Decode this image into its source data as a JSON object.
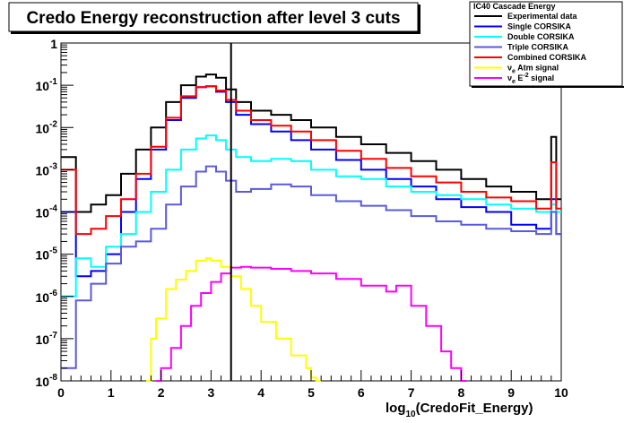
{
  "chart_data": {
    "type": "line",
    "title": "Credo Energy reconstruction after level 3 cuts",
    "legend_title": "IC40 Cascade Energy",
    "legend_placement": "top-right",
    "xlabel": "log",
    "xlabel_sub": "10",
    "xlabel_rest": "(CredoFit_Energy)",
    "xlim": [
      0,
      10
    ],
    "ylim": [
      1e-08,
      1
    ],
    "yscale": "log",
    "x_ticks": [
      "0",
      "1",
      "2",
      "3",
      "4",
      "5",
      "6",
      "7",
      "8",
      "9",
      "10"
    ],
    "y_ticks": [
      {
        "base": "1",
        "exp": ""
      },
      {
        "base": "10",
        "exp": "-1"
      },
      {
        "base": "10",
        "exp": "-2"
      },
      {
        "base": "10",
        "exp": "-3"
      },
      {
        "base": "10",
        "exp": "-4"
      },
      {
        "base": "10",
        "exp": "-5"
      },
      {
        "base": "10",
        "exp": "-6"
      },
      {
        "base": "10",
        "exp": "-7"
      },
      {
        "base": "10",
        "exp": "-8"
      }
    ],
    "cut_line_x": 3.4,
    "series": [
      {
        "name": "Experimental data",
        "color": "#000000",
        "x": [
          0.0,
          0.3,
          0.6,
          0.9,
          1.2,
          1.5,
          1.8,
          2.1,
          2.4,
          2.7,
          2.9,
          3.1,
          3.3,
          3.5,
          3.8,
          4.2,
          4.6,
          5.0,
          5.5,
          6.0,
          6.5,
          7.0,
          7.5,
          8.0,
          8.5,
          9.0,
          9.5,
          9.8,
          9.9
        ],
        "y": [
          0.002,
          0.0001,
          0.00015,
          0.00025,
          0.0008,
          0.003,
          0.01,
          0.04,
          0.1,
          0.16,
          0.18,
          0.15,
          0.08,
          0.04,
          0.025,
          0.02,
          0.015,
          0.01,
          0.006,
          0.004,
          0.0025,
          0.0016,
          0.001,
          0.0006,
          0.0004,
          0.0003,
          0.0002,
          0.006,
          0.0002
        ]
      },
      {
        "name": "Single CORSIKA",
        "color": "#0000ff",
        "x": [
          0.0,
          0.3,
          0.6,
          0.9,
          1.2,
          1.5,
          1.8,
          2.1,
          2.4,
          2.7,
          2.9,
          3.1,
          3.3,
          3.5,
          3.8,
          4.2,
          4.6,
          5.0,
          5.5,
          6.0,
          6.5,
          7.0,
          7.5,
          8.0,
          8.5,
          9.0,
          9.5,
          9.8,
          9.9
        ],
        "y": [
          0.0001,
          3e-06,
          4e-06,
          1e-05,
          0.0001,
          0.0006,
          0.003,
          0.015,
          0.05,
          0.09,
          0.095,
          0.07,
          0.04,
          0.02,
          0.012,
          0.008,
          0.005,
          0.003,
          0.0017,
          0.001,
          0.0006,
          0.0004,
          0.0002,
          0.00013,
          0.0001,
          5e-05,
          4e-05,
          0.0002,
          3e-05
        ]
      },
      {
        "name": "Double CORSIKA",
        "color": "#00ffff",
        "x": [
          0.0,
          0.3,
          0.6,
          0.9,
          1.2,
          1.5,
          1.8,
          2.1,
          2.4,
          2.7,
          2.9,
          3.1,
          3.3,
          3.5,
          3.8,
          4.2,
          4.6,
          5.0,
          5.5,
          6.0,
          6.5,
          7.0,
          7.5,
          8.0,
          8.5,
          9.0,
          9.5,
          9.8,
          9.9
        ],
        "y": [
          1e-06,
          8e-06,
          5e-06,
          1.5e-05,
          3e-05,
          0.0001,
          0.0003,
          0.001,
          0.003,
          0.0055,
          0.0065,
          0.005,
          0.003,
          0.002,
          0.0016,
          0.0018,
          0.0016,
          0.001,
          0.0007,
          0.0006,
          0.0004,
          0.0003,
          0.00025,
          0.0002,
          0.00015,
          0.00012,
          0.0001,
          0.00015,
          0.0001
        ]
      },
      {
        "name": "Triple CORSIKA",
        "color": "#5a5adc",
        "x": [
          0.0,
          0.3,
          0.6,
          0.9,
          1.2,
          1.5,
          1.8,
          2.1,
          2.4,
          2.7,
          2.9,
          3.1,
          3.3,
          3.5,
          3.8,
          4.2,
          4.6,
          5.0,
          5.5,
          6.0,
          6.5,
          7.0,
          7.5,
          8.0,
          8.5,
          9.0,
          9.5,
          9.8,
          9.9
        ],
        "y": [
          2e-08,
          8e-07,
          2e-06,
          6e-06,
          1.5e-05,
          2e-05,
          4e-05,
          0.00015,
          0.0004,
          0.0009,
          0.0012,
          0.0009,
          0.00055,
          0.0003,
          0.00035,
          0.00045,
          0.0004,
          0.00025,
          0.00018,
          0.00014,
          0.00011,
          8e-05,
          6e-05,
          5e-05,
          4e-05,
          3.5e-05,
          3e-05,
          0.0001,
          3e-05
        ]
      },
      {
        "name": "Combined CORSIKA",
        "color": "#ff0000",
        "x": [
          0.0,
          0.3,
          0.6,
          0.9,
          1.2,
          1.5,
          1.8,
          2.1,
          2.4,
          2.7,
          2.9,
          3.1,
          3.3,
          3.5,
          3.8,
          4.2,
          4.6,
          5.0,
          5.5,
          6.0,
          6.5,
          7.0,
          7.5,
          8.0,
          8.5,
          9.0,
          9.5,
          9.8,
          9.9
        ],
        "y": [
          0.001,
          3e-05,
          4e-05,
          8e-05,
          0.0002,
          0.0008,
          0.0035,
          0.017,
          0.055,
          0.09,
          0.095,
          0.075,
          0.045,
          0.025,
          0.015,
          0.011,
          0.008,
          0.005,
          0.0028,
          0.0018,
          0.0011,
          0.0007,
          0.0005,
          0.0003,
          0.00022,
          0.00018,
          0.00012,
          0.0015,
          0.00012
        ]
      },
      {
        "name": "Atm signal",
        "name_prefix": "ν",
        "name_sub": "e",
        "color": "#ffff00",
        "x": [
          1.7,
          1.8,
          1.9,
          2.1,
          2.3,
          2.5,
          2.7,
          2.9,
          3.0,
          3.2,
          3.4,
          3.6,
          3.8,
          4.0,
          4.3,
          4.6,
          4.9,
          5.0,
          5.1
        ],
        "y": [
          1e-08,
          1e-07,
          3e-07,
          1.5e-06,
          2.5e-06,
          4e-06,
          7e-06,
          8e-06,
          7e-06,
          5e-06,
          3e-06,
          1.5e-06,
          6e-07,
          2.5e-07,
          1e-07,
          4e-08,
          2e-08,
          1.2e-08,
          1e-08
        ]
      },
      {
        "name": "signal",
        "name_prefix": "ν",
        "name_sub": "e",
        "name_mid": " E",
        "name_sup": "-2",
        "color": "#ff00ff",
        "x": [
          1.9,
          2.0,
          2.2,
          2.4,
          2.6,
          2.8,
          3.0,
          3.2,
          3.4,
          3.6,
          3.8,
          4.2,
          4.6,
          5.0,
          5.5,
          6.0,
          6.5,
          6.7,
          7.0,
          7.3,
          7.6,
          7.8,
          8.0
        ],
        "y": [
          1e-08,
          2e-08,
          6e-08,
          2e-07,
          6e-07,
          1.2e-06,
          2.2e-06,
          3.5e-06,
          4.8e-06,
          5e-06,
          4.8e-06,
          4.5e-06,
          4e-06,
          3.5e-06,
          2.6e-06,
          1.8e-06,
          1.3e-06,
          1.8e-06,
          6e-07,
          2e-07,
          5e-08,
          2e-08,
          1e-08
        ]
      }
    ]
  }
}
